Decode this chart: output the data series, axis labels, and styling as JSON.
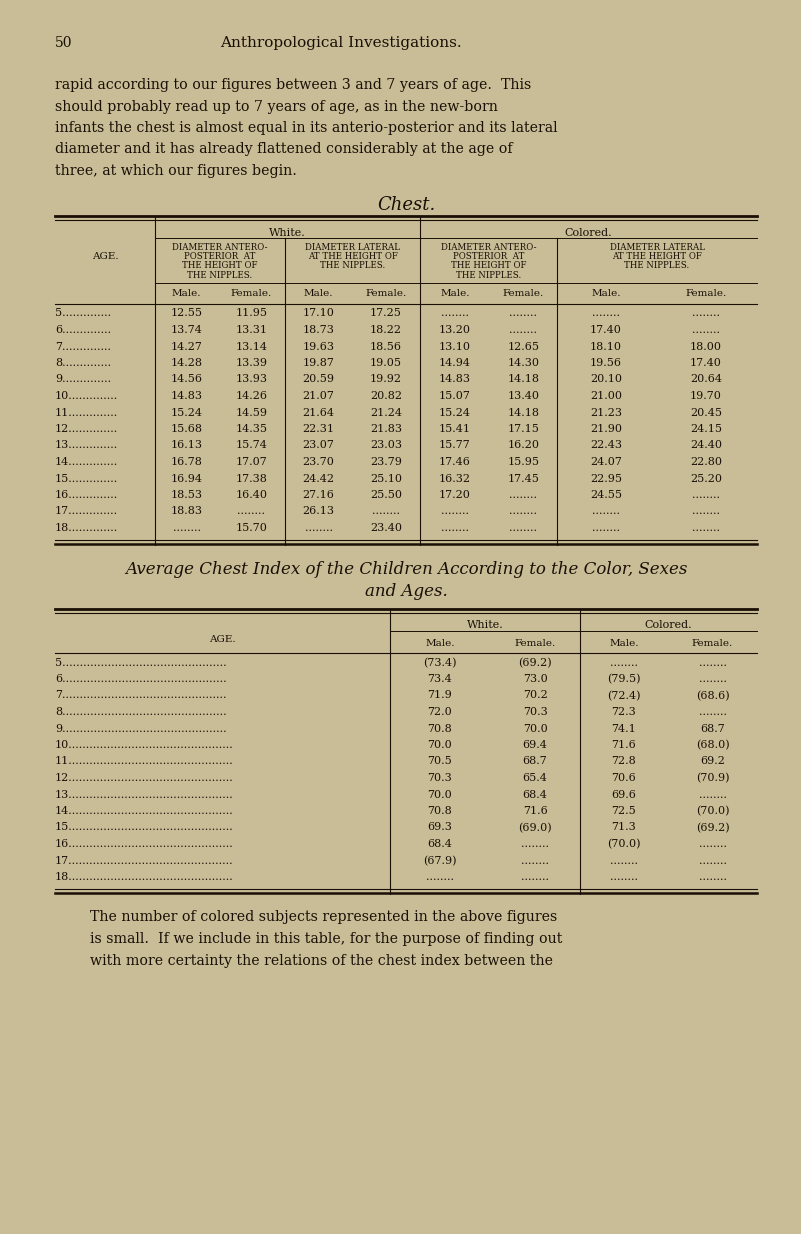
{
  "bg_color": "#c8bd96",
  "text_color": "#1a0f05",
  "header_num": "50",
  "header_title": "Anthropological Investigations.",
  "para1_lines": [
    "rapid according to our figures between 3 and 7 years of age.  This",
    "should probably read up to 7 years of age, as in the new-born",
    "infants the chest is almost equal in its anterio-posterior and its lateral",
    "diameter and it has already flattened considerably at the age of",
    "three, at which our figures begin."
  ],
  "table1_title": "Chest.",
  "table1_ages": [
    "5",
    "6",
    "7",
    "8",
    "9",
    "10",
    "11",
    "12",
    "13",
    "14",
    "15",
    "16",
    "17",
    "18"
  ],
  "table1_data": [
    [
      "12.55",
      "11.95",
      "17.10",
      "17.25",
      "........",
      "........",
      "........",
      "........"
    ],
    [
      "13.74",
      "13.31",
      "18.73",
      "18.22",
      "13.20",
      "........",
      "17.40",
      "........"
    ],
    [
      "14.27",
      "13.14",
      "19.63",
      "18.56",
      "13.10",
      "12.65",
      "18.10",
      "18.00"
    ],
    [
      "14.28",
      "13.39",
      "19.87",
      "19.05",
      "14.94",
      "14.30",
      "19.56",
      "17.40"
    ],
    [
      "14.56",
      "13.93",
      "20.59",
      "19.92",
      "14.83",
      "14.18",
      "20.10",
      "20.64"
    ],
    [
      "14.83",
      "14.26",
      "21.07",
      "20.82",
      "15.07",
      "13.40",
      "21.00",
      "19.70"
    ],
    [
      "15.24",
      "14.59",
      "21.64",
      "21.24",
      "15.24",
      "14.18",
      "21.23",
      "20.45"
    ],
    [
      "15.68",
      "14.35",
      "22.31",
      "21.83",
      "15.41",
      "17.15",
      "21.90",
      "24.15"
    ],
    [
      "16.13",
      "15.74",
      "23.07",
      "23.03",
      "15.77",
      "16.20",
      "22.43",
      "24.40"
    ],
    [
      "16.78",
      "17.07",
      "23.70",
      "23.79",
      "17.46",
      "15.95",
      "24.07",
      "22.80"
    ],
    [
      "16.94",
      "17.38",
      "24.42",
      "25.10",
      "16.32",
      "17.45",
      "22.95",
      "25.20"
    ],
    [
      "18.53",
      "16.40",
      "27.16",
      "25.50",
      "17.20",
      "........",
      "24.55",
      "........"
    ],
    [
      "18.83",
      "........",
      "26.13",
      "........",
      "........",
      "........",
      "........",
      "........"
    ],
    [
      "........",
      "15.70",
      "........",
      "23.40",
      "........",
      "........",
      "........",
      "........"
    ]
  ],
  "table2_title_line1": "Average Chest Index of the Children According to the Color, Sexes",
  "table2_title_line2": "and Ages.",
  "table2_ages": [
    "5",
    "6",
    "7",
    "8",
    "9",
    "10",
    "11",
    "12",
    "13",
    "14",
    "15",
    "16",
    "17",
    "18"
  ],
  "table2_data": [
    [
      "(73.4)",
      "(69.2)",
      "........",
      "........"
    ],
    [
      "73.4",
      "73.0",
      "(79.5)",
      "........"
    ],
    [
      "71.9",
      "70.2",
      "(72.4)",
      "(68.6)"
    ],
    [
      "72.0",
      "70.3",
      "72.3",
      "........"
    ],
    [
      "70.8",
      "70.0",
      "74.1",
      "68.7"
    ],
    [
      "70.0",
      "69.4",
      "71.6",
      "(68.0)"
    ],
    [
      "70.5",
      "68.7",
      "72.8",
      "69.2"
    ],
    [
      "70.3",
      "65.4",
      "70.6",
      "(70.9)"
    ],
    [
      "70.0",
      "68.4",
      "69.6",
      "........"
    ],
    [
      "70.8",
      "71.6",
      "72.5",
      "(70.0)"
    ],
    [
      "69.3",
      "(69.0)",
      "71.3",
      "(69.2)"
    ],
    [
      "68.4",
      "........",
      "(70.0)",
      "........"
    ],
    [
      "(67.9)",
      "........",
      "........",
      "........"
    ],
    [
      "........",
      "........",
      "........",
      "........"
    ]
  ],
  "para2_lines": [
    "The number of colored subjects represented in the above figures",
    "is small.  If we include in this table, for the purpose of finding out",
    "with more certainty the relations of the chest index between the"
  ]
}
